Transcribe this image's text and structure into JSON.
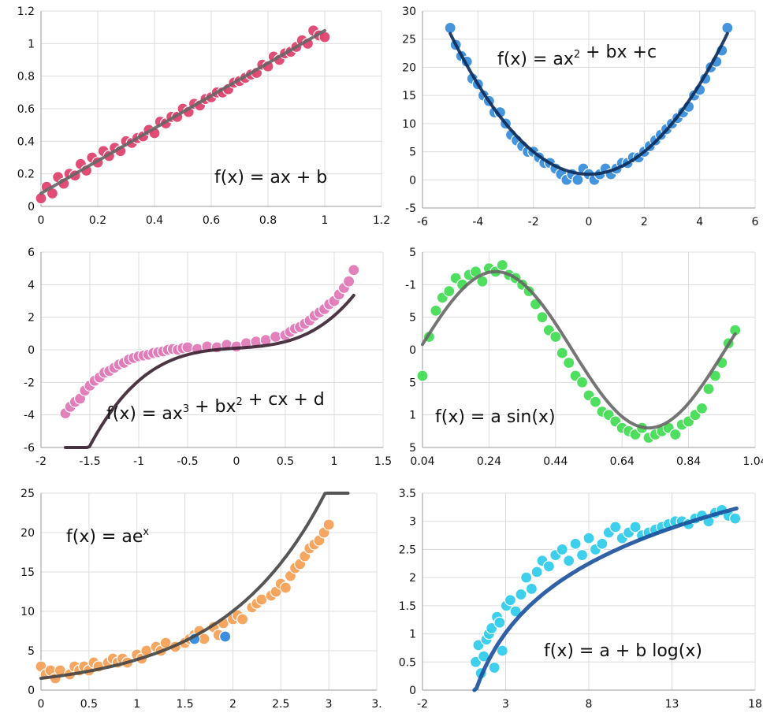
{
  "chart_data": [
    {
      "type": "scatter",
      "formula": "f(x) = ax + b",
      "x_ticks": [
        "0",
        "0.2",
        "0.4",
        "0.6",
        "0.8",
        "1",
        "1.2"
      ],
      "y_ticks": [
        "0",
        "0.2",
        "0.4",
        "0.6",
        "0.8",
        "1",
        "1.2"
      ],
      "xlim": [
        0,
        1.2
      ],
      "ylim": [
        0,
        1.2
      ],
      "point_color": "#e0436f",
      "fit_color": "#666666",
      "fit": {
        "kind": "linear",
        "a": 1.0,
        "b": 0.08,
        "x_range": [
          0,
          1
        ]
      },
      "x": [
        0.0,
        0.02,
        0.04,
        0.06,
        0.08,
        0.1,
        0.12,
        0.14,
        0.16,
        0.18,
        0.2,
        0.22,
        0.24,
        0.26,
        0.28,
        0.3,
        0.32,
        0.34,
        0.36,
        0.38,
        0.4,
        0.42,
        0.44,
        0.46,
        0.48,
        0.5,
        0.52,
        0.54,
        0.56,
        0.58,
        0.6,
        0.62,
        0.64,
        0.66,
        0.68,
        0.7,
        0.72,
        0.74,
        0.76,
        0.78,
        0.8,
        0.82,
        0.84,
        0.86,
        0.88,
        0.9,
        0.92,
        0.94,
        0.96,
        0.98,
        1.0
      ],
      "y": [
        0.05,
        0.12,
        0.08,
        0.18,
        0.14,
        0.2,
        0.19,
        0.26,
        0.22,
        0.3,
        0.27,
        0.34,
        0.31,
        0.36,
        0.34,
        0.4,
        0.39,
        0.42,
        0.43,
        0.47,
        0.45,
        0.52,
        0.51,
        0.55,
        0.55,
        0.6,
        0.58,
        0.63,
        0.62,
        0.66,
        0.67,
        0.7,
        0.7,
        0.72,
        0.76,
        0.77,
        0.79,
        0.81,
        0.82,
        0.87,
        0.86,
        0.92,
        0.9,
        0.94,
        0.95,
        0.98,
        1.02,
        1.0,
        1.08,
        1.05,
        1.04
      ]
    },
    {
      "type": "scatter",
      "formula_base": "f(x) = ax",
      "formula_sup": "2",
      "formula_rest": " + bx +c",
      "x_ticks": [
        "-6",
        "-4",
        "-2",
        "0",
        "2",
        "4",
        "6"
      ],
      "y_ticks": [
        "-5",
        "0",
        "5",
        "10",
        "15",
        "20",
        "25",
        "30"
      ],
      "xlim": [
        -6,
        6
      ],
      "ylim": [
        -5,
        30
      ],
      "point_color": "#3b8fdc",
      "fit_color": "#0d2a55",
      "fit": {
        "kind": "quadratic",
        "a": 1.0,
        "b": 0.0,
        "c": 1.0,
        "x_range": [
          -5,
          5
        ]
      },
      "x": [
        -5.0,
        -4.8,
        -4.6,
        -4.4,
        -4.2,
        -4.0,
        -3.8,
        -3.6,
        -3.4,
        -3.2,
        -3.0,
        -2.8,
        -2.6,
        -2.4,
        -2.2,
        -2.0,
        -1.8,
        -1.6,
        -1.4,
        -1.2,
        -1.0,
        -0.8,
        -0.6,
        -0.4,
        -0.2,
        0.0,
        0.2,
        0.4,
        0.6,
        0.8,
        1.0,
        1.2,
        1.4,
        1.6,
        1.8,
        2.0,
        2.2,
        2.4,
        2.6,
        2.8,
        3.0,
        3.2,
        3.4,
        3.6,
        3.8,
        4.0,
        4.2,
        4.4,
        4.6,
        4.8,
        5.0
      ],
      "y": [
        27,
        24,
        22,
        21,
        18,
        17,
        15,
        14,
        12,
        12,
        10,
        8,
        7,
        6,
        5,
        5,
        4,
        3,
        3,
        2,
        1,
        0,
        1,
        0,
        2,
        1,
        0,
        1,
        2,
        1,
        2,
        3,
        3,
        4,
        4,
        5,
        6,
        7,
        8,
        9,
        10,
        11,
        12,
        13,
        15,
        16,
        18,
        20,
        21,
        23,
        27
      ]
    },
    {
      "type": "scatter",
      "formula_base": "f(x) = ax",
      "formula_sup": "3",
      "formula_mid": " + bx",
      "formula_sup2": "2",
      "formula_rest": " + cx + d",
      "x_ticks": [
        "-2",
        "-1.5",
        "-1",
        "-0.5",
        "0",
        "0.5",
        "1",
        "1.5"
      ],
      "y_ticks": [
        "-6",
        "-4",
        "-2",
        "0",
        "2",
        "4",
        "6"
      ],
      "xlim": [
        -2,
        1.5
      ],
      "ylim": [
        -6,
        6
      ],
      "point_color": "#e07ab8",
      "fit_color": "#3a2030",
      "fit": {
        "kind": "cubic",
        "a": 1.6,
        "b": 0.0,
        "c": 0.4,
        "d": 0.1,
        "x_range": [
          -1.75,
          1.2
        ]
      },
      "x": [
        -1.75,
        -1.7,
        -1.65,
        -1.6,
        -1.55,
        -1.5,
        -1.45,
        -1.4,
        -1.35,
        -1.3,
        -1.25,
        -1.2,
        -1.15,
        -1.1,
        -1.05,
        -1.0,
        -0.95,
        -0.9,
        -0.85,
        -0.8,
        -0.75,
        -0.7,
        -0.65,
        -0.6,
        -0.55,
        -0.5,
        -0.4,
        -0.3,
        -0.2,
        -0.1,
        0.0,
        0.1,
        0.2,
        0.3,
        0.4,
        0.5,
        0.55,
        0.6,
        0.65,
        0.7,
        0.75,
        0.8,
        0.85,
        0.9,
        0.95,
        1.0,
        1.05,
        1.1,
        1.15,
        1.2
      ],
      "y": [
        -3.9,
        -3.5,
        -3.2,
        -3.0,
        -2.5,
        -2.2,
        -1.9,
        -1.7,
        -1.4,
        -1.3,
        -1.1,
        -0.9,
        -0.8,
        -0.6,
        -0.5,
        -0.4,
        -0.35,
        -0.3,
        -0.2,
        -0.15,
        -0.1,
        0.0,
        0.05,
        0.0,
        0.1,
        0.15,
        0.05,
        0.2,
        0.15,
        0.3,
        0.2,
        0.4,
        0.5,
        0.6,
        0.8,
        0.9,
        1.1,
        1.3,
        1.4,
        1.6,
        1.8,
        2.1,
        2.3,
        2.5,
        2.8,
        3.0,
        3.4,
        3.8,
        4.2,
        4.9
      ]
    },
    {
      "type": "scatter",
      "formula": "f(x) = a sin(x)",
      "x_ticks": [
        "0.04",
        "0.24",
        "0.44",
        "0.64",
        "0.84",
        "1.04"
      ],
      "y_ticks": [
        "5",
        "1",
        "5",
        "0",
        "5",
        "-1",
        "5"
      ],
      "xlim": [
        0.04,
        1.04
      ],
      "ylim": [
        -1.5,
        1.5
      ],
      "point_color": "#44dd55",
      "fit_color": "#666666",
      "fit": {
        "kind": "sine",
        "amp": 1.2,
        "period": 0.92,
        "phase": 0.03,
        "x_range": [
          0.04,
          0.98
        ]
      },
      "x": [
        0.04,
        0.06,
        0.08,
        0.1,
        0.12,
        0.14,
        0.16,
        0.18,
        0.2,
        0.22,
        0.24,
        0.26,
        0.28,
        0.3,
        0.32,
        0.34,
        0.36,
        0.38,
        0.4,
        0.42,
        0.44,
        0.46,
        0.48,
        0.5,
        0.52,
        0.54,
        0.56,
        0.58,
        0.6,
        0.62,
        0.64,
        0.66,
        0.68,
        0.7,
        0.72,
        0.74,
        0.76,
        0.78,
        0.8,
        0.82,
        0.84,
        0.86,
        0.88,
        0.9,
        0.92,
        0.94,
        0.96,
        0.98
      ],
      "y": [
        -0.4,
        0.2,
        0.6,
        0.8,
        0.9,
        1.1,
        1.0,
        1.15,
        1.2,
        1.05,
        1.25,
        1.2,
        1.3,
        1.15,
        1.1,
        1.0,
        0.9,
        0.7,
        0.5,
        0.3,
        0.2,
        -0.05,
        -0.2,
        -0.4,
        -0.5,
        -0.7,
        -0.8,
        -0.95,
        -1.0,
        -1.1,
        -1.2,
        -1.25,
        -1.3,
        -1.2,
        -1.35,
        -1.3,
        -1.25,
        -1.2,
        -1.3,
        -1.15,
        -1.1,
        -1.0,
        -0.9,
        -0.6,
        -0.4,
        -0.2,
        0.1,
        0.3
      ]
    },
    {
      "type": "scatter",
      "formula_base": "f(x) = ae",
      "formula_sup": "x",
      "x_ticks": [
        "0",
        "0.5",
        "1",
        "1.5",
        "2",
        "2.5",
        "3",
        "3."
      ],
      "y_ticks": [
        "0",
        "5",
        "10",
        "15",
        "20",
        "25"
      ],
      "xlim": [
        0,
        3.5
      ],
      "ylim": [
        0,
        25
      ],
      "point_color": "#f4a25a",
      "highlight_color": "#3b8fdc",
      "fit_color": "#444444",
      "fit": {
        "kind": "exp",
        "a": 1.5,
        "b": 0.95,
        "x_range": [
          0.0,
          3.2
        ]
      },
      "x": [
        0.0,
        0.05,
        0.1,
        0.15,
        0.2,
        0.3,
        0.35,
        0.4,
        0.45,
        0.5,
        0.55,
        0.6,
        0.7,
        0.75,
        0.8,
        0.85,
        0.9,
        1.0,
        1.05,
        1.1,
        1.2,
        1.25,
        1.3,
        1.4,
        1.5,
        1.55,
        1.6,
        1.65,
        1.7,
        1.8,
        1.85,
        1.9,
        2.0,
        2.05,
        2.1,
        2.2,
        2.25,
        2.3,
        2.4,
        2.45,
        2.5,
        2.55,
        2.6,
        2.65,
        2.7,
        2.75,
        2.8,
        2.85,
        2.9,
        2.95,
        3.0
      ],
      "y": [
        3.0,
        2.0,
        2.5,
        1.5,
        2.5,
        2.0,
        3.0,
        2.5,
        3.0,
        2.5,
        3.5,
        3.0,
        3.5,
        4.0,
        3.5,
        4.0,
        3.5,
        4.5,
        4.0,
        5.0,
        5.5,
        5.0,
        6.0,
        5.5,
        6.0,
        6.5,
        7.0,
        7.5,
        6.5,
        8.0,
        7.0,
        8.5,
        9.0,
        9.5,
        9.0,
        10.5,
        11.0,
        11.5,
        12.0,
        12.5,
        13.5,
        13.0,
        14.5,
        15.5,
        16.0,
        17.0,
        18.0,
        18.5,
        19.0,
        20.0,
        21.0
      ],
      "highlight_points": [
        [
          1.6,
          6.5
        ],
        [
          1.92,
          6.8
        ]
      ]
    },
    {
      "type": "scatter",
      "formula": "f(x) = a + b log(x)",
      "x_ticks": [
        "-2",
        "3",
        "8",
        "13",
        "18"
      ],
      "y_ticks": [
        "0",
        "0.5",
        "1",
        "1.5",
        "2",
        "2.5",
        "3",
        "3.5"
      ],
      "xlim": [
        -2,
        23
      ],
      "ylim": [
        0,
        3.5
      ],
      "point_color": "#33ccea",
      "fit_color": "#1a4f9c",
      "fit": {
        "kind": "log",
        "a": -0.95,
        "b": 1.36,
        "x_range": [
          1.9,
          21.6
        ]
      },
      "x": [
        2.0,
        2.2,
        2.4,
        2.6,
        2.8,
        3.0,
        3.2,
        3.4,
        3.6,
        3.8,
        4.0,
        4.3,
        4.6,
        5.0,
        5.4,
        5.8,
        6.2,
        6.6,
        7.0,
        7.5,
        8.0,
        8.5,
        9.0,
        9.5,
        10.0,
        10.5,
        11.0,
        11.5,
        12.0,
        12.5,
        13.0,
        13.5,
        14.0,
        14.5,
        15.0,
        15.5,
        16.0,
        16.5,
        17.0,
        17.5,
        18.0,
        18.5,
        19.0,
        19.5,
        20.0,
        20.5,
        21.0,
        21.5
      ],
      "y": [
        0.5,
        0.8,
        0.3,
        0.6,
        0.9,
        1.0,
        1.1,
        0.4,
        1.3,
        1.2,
        0.7,
        1.5,
        1.6,
        1.4,
        1.7,
        2.0,
        1.8,
        2.1,
        2.3,
        2.2,
        2.4,
        2.5,
        2.3,
        2.6,
        2.4,
        2.7,
        2.5,
        2.6,
        2.8,
        2.9,
        2.7,
        2.8,
        2.9,
        2.75,
        2.8,
        2.85,
        2.9,
        2.95,
        3.0,
        3.0,
        2.95,
        3.05,
        3.1,
        3.0,
        3.15,
        3.2,
        3.1,
        3.05
      ]
    }
  ]
}
